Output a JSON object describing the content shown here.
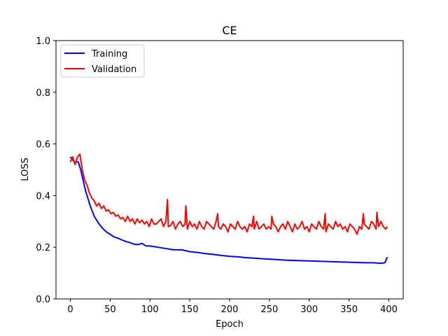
{
  "chart_data": {
    "type": "line",
    "title": "CE",
    "xlabel": "Epoch",
    "ylabel": "LOSS",
    "xlim": [
      -18,
      418
    ],
    "ylim": [
      0.0,
      1.0
    ],
    "x_ticks": [
      0,
      50,
      100,
      150,
      200,
      250,
      300,
      350,
      400
    ],
    "y_ticks": [
      0.0,
      0.2,
      0.4,
      0.6,
      0.8,
      1.0
    ],
    "y_tick_labels": [
      "0.0",
      "0.2",
      "0.4",
      "0.6",
      "0.8",
      "1.0"
    ],
    "legend_position": "top-left",
    "grid": false,
    "series": [
      {
        "name": "Training",
        "color": "#0000ff",
        "x": [
          0,
          5,
          10,
          13,
          16,
          19,
          22,
          25,
          30,
          35,
          40,
          45,
          50,
          55,
          60,
          65,
          70,
          75,
          80,
          85,
          90,
          95,
          100,
          110,
          120,
          130,
          140,
          150,
          160,
          170,
          180,
          190,
          200,
          210,
          220,
          230,
          240,
          250,
          260,
          270,
          280,
          290,
          300,
          310,
          320,
          330,
          340,
          350,
          360,
          370,
          380,
          390,
          395,
          398
        ],
        "y": [
          0.55,
          0.53,
          0.53,
          0.5,
          0.46,
          0.42,
          0.39,
          0.36,
          0.32,
          0.295,
          0.275,
          0.26,
          0.25,
          0.24,
          0.235,
          0.228,
          0.222,
          0.218,
          0.212,
          0.21,
          0.215,
          0.205,
          0.205,
          0.2,
          0.195,
          0.19,
          0.19,
          0.183,
          0.18,
          0.175,
          0.172,
          0.168,
          0.165,
          0.163,
          0.16,
          0.158,
          0.156,
          0.154,
          0.152,
          0.15,
          0.149,
          0.148,
          0.147,
          0.146,
          0.145,
          0.144,
          0.143,
          0.142,
          0.141,
          0.14,
          0.14,
          0.138,
          0.14,
          0.162
        ]
      },
      {
        "name": "Validation",
        "color": "#ff0000",
        "x": [
          0,
          3,
          6,
          9,
          12,
          15,
          18,
          21,
          24,
          27,
          30,
          33,
          36,
          39,
          42,
          45,
          48,
          51,
          54,
          57,
          60,
          63,
          66,
          69,
          72,
          75,
          78,
          81,
          84,
          87,
          90,
          93,
          96,
          99,
          102,
          105,
          108,
          111,
          114,
          117,
          120,
          123,
          126,
          129,
          132,
          135,
          138,
          141,
          144,
          147,
          150,
          153,
          156,
          159,
          162,
          165,
          168,
          171,
          174,
          177,
          180,
          183,
          186,
          189,
          192,
          195,
          198,
          201,
          204,
          207,
          210,
          213,
          216,
          219,
          222,
          225,
          228,
          231,
          234,
          237,
          240,
          243,
          246,
          249,
          252,
          255,
          258,
          261,
          264,
          267,
          270,
          273,
          276,
          279,
          282,
          285,
          288,
          291,
          294,
          297,
          300,
          303,
          306,
          309,
          312,
          315,
          318,
          321,
          324,
          327,
          330,
          333,
          336,
          339,
          342,
          345,
          348,
          351,
          354,
          357,
          360,
          363,
          366,
          369,
          372,
          375,
          378,
          381,
          384,
          387,
          390,
          393,
          396,
          398
        ],
        "y": [
          0.53,
          0.55,
          0.52,
          0.55,
          0.56,
          0.5,
          0.46,
          0.44,
          0.41,
          0.39,
          0.38,
          0.36,
          0.37,
          0.35,
          0.36,
          0.34,
          0.345,
          0.33,
          0.335,
          0.32,
          0.325,
          0.31,
          0.315,
          0.3,
          0.32,
          0.3,
          0.31,
          0.29,
          0.31,
          0.295,
          0.305,
          0.29,
          0.3,
          0.28,
          0.31,
          0.29,
          0.29,
          0.3,
          0.31,
          0.28,
          0.3,
          0.28,
          0.285,
          0.3,
          0.27,
          0.29,
          0.3,
          0.28,
          0.29,
          0.27,
          0.3,
          0.28,
          0.29,
          0.27,
          0.3,
          0.28,
          0.27,
          0.3,
          0.29,
          0.28,
          0.27,
          0.3,
          0.28,
          0.27,
          0.29,
          0.28,
          0.26,
          0.29,
          0.28,
          0.27,
          0.3,
          0.28,
          0.27,
          0.28,
          0.26,
          0.29,
          0.28,
          0.27,
          0.3,
          0.27,
          0.28,
          0.29,
          0.27,
          0.28,
          0.27,
          0.29,
          0.28,
          0.26,
          0.28,
          0.29,
          0.27,
          0.3,
          0.28,
          0.26,
          0.29,
          0.27,
          0.28,
          0.3,
          0.27,
          0.28,
          0.26,
          0.29,
          0.28,
          0.27,
          0.3,
          0.28,
          0.27,
          0.26,
          0.29,
          0.28,
          0.27,
          0.3,
          0.28,
          0.29,
          0.27,
          0.28,
          0.26,
          0.29,
          0.28,
          0.27,
          0.25,
          0.28,
          0.27,
          0.29,
          0.28,
          0.27,
          0.3,
          0.29,
          0.27,
          0.28,
          0.3,
          0.28,
          0.27,
          0.28
        ],
        "spikes": [
          {
            "x": 122,
            "y": 0.385
          },
          {
            "x": 145,
            "y": 0.36
          },
          {
            "x": 185,
            "y": 0.33
          },
          {
            "x": 230,
            "y": 0.32
          },
          {
            "x": 253,
            "y": 0.32
          },
          {
            "x": 320,
            "y": 0.33
          },
          {
            "x": 368,
            "y": 0.33
          },
          {
            "x": 385,
            "y": 0.335
          }
        ]
      }
    ]
  }
}
